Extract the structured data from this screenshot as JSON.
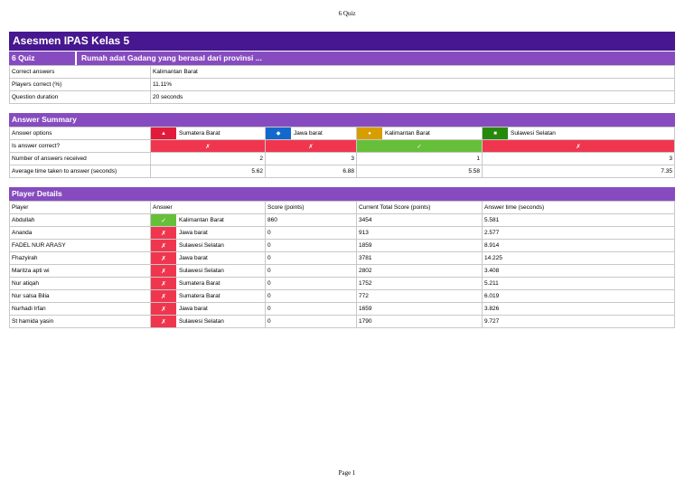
{
  "header": "6 Quiz",
  "footer": "Page 1",
  "title": "Asesmen IPAS Kelas 5",
  "quiz": {
    "number": "6 Quiz",
    "question": "Rumah adat Gadang yang berasal dari provinsi ..."
  },
  "info": [
    {
      "label": "Correct answers",
      "value": "Kalimantan Barat"
    },
    {
      "label": "Players correct (%)",
      "value": "11.11%"
    },
    {
      "label": "Question duration",
      "value": "20 seconds"
    }
  ],
  "summary": {
    "heading": "Answer Summary",
    "row_labels": {
      "options": "Answer options",
      "correct": "Is answer correct?",
      "count": "Number of answers received",
      "avg": "Average time taken to answer (seconds)"
    },
    "options": [
      {
        "label": "Sumatera Barat",
        "icon": "triangle-icon",
        "glyph": "▲",
        "color": "#e21b3c",
        "correct": "✗",
        "is_correct": false,
        "count": "2",
        "avg": "5.62"
      },
      {
        "label": "Jawa barat",
        "icon": "diamond-icon",
        "glyph": "◆",
        "color": "#1368ce",
        "correct": "✗",
        "is_correct": false,
        "count": "3",
        "avg": "6.88"
      },
      {
        "label": "Kalimantan Barat",
        "icon": "circle-icon",
        "glyph": "●",
        "color": "#d89e00",
        "correct": "✓",
        "is_correct": true,
        "count": "1",
        "avg": "5.58"
      },
      {
        "label": "Sulawesi Selatan",
        "icon": "square-icon",
        "glyph": "■",
        "color": "#26890c",
        "correct": "✗",
        "is_correct": false,
        "count": "3",
        "avg": "7.35"
      }
    ]
  },
  "players": {
    "heading": "Player Details",
    "columns": [
      "Player",
      "Answer",
      "Score (points)",
      "Current Total Score (points)",
      "Answer time (seconds)"
    ],
    "rows": [
      {
        "name": "Abdullah",
        "mark": "✓",
        "ok": true,
        "answer": "Kalimantan Barat",
        "score": "860",
        "total": "3454",
        "time": "5.581"
      },
      {
        "name": "Ananda",
        "mark": "✗",
        "ok": false,
        "answer": "Jawa barat",
        "score": "0",
        "total": "913",
        "time": "2.577"
      },
      {
        "name": "FADEL NUR ARASY",
        "mark": "✗",
        "ok": false,
        "answer": "Sulawesi Selatan",
        "score": "0",
        "total": "1859",
        "time": "8.914"
      },
      {
        "name": "Fhazyirah",
        "mark": "✗",
        "ok": false,
        "answer": "Jawa barat",
        "score": "0",
        "total": "3781",
        "time": "14.225"
      },
      {
        "name": "Maritza apti wi",
        "mark": "✗",
        "ok": false,
        "answer": "Sulawesi Selatan",
        "score": "0",
        "total": "2802",
        "time": "3.408"
      },
      {
        "name": "Nur atiqah",
        "mark": "✗",
        "ok": false,
        "answer": "Sumatera Barat",
        "score": "0",
        "total": "1752",
        "time": "5.211"
      },
      {
        "name": "Nur salsa Bilia",
        "mark": "✗",
        "ok": false,
        "answer": "Sumatera Barat",
        "score": "0",
        "total": "772",
        "time": "6.019"
      },
      {
        "name": "Nurhadi Irfan",
        "mark": "✗",
        "ok": false,
        "answer": "Jawa barat",
        "score": "0",
        "total": "1659",
        "time": "3.826"
      },
      {
        "name": "St hamida yasin",
        "mark": "✗",
        "ok": false,
        "answer": "Sulawesi Selatan",
        "score": "0",
        "total": "1790",
        "time": "9.727"
      }
    ]
  }
}
